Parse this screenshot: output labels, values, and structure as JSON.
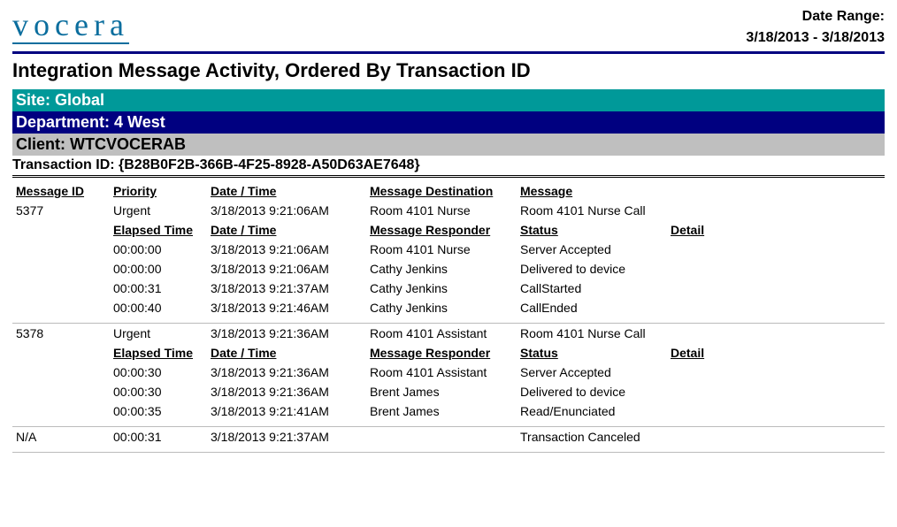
{
  "header": {
    "logo_text": "vocera",
    "date_range_label": "Date Range:",
    "date_range_value": "3/18/2013 - 3/18/2013"
  },
  "report": {
    "title": "Integration Message Activity, Ordered By Transaction ID",
    "site_label": "Site: Global",
    "department_label": "Department: 4 West",
    "client_label": "Client: WTCVOCERAB",
    "transaction_label": "Transaction ID: {B28B0F2B-366B-4F25-8928-A50D63AE7648}"
  },
  "columns_top": {
    "message_id": "Message ID",
    "priority": "Priority",
    "datetime": "Date / Time",
    "destination": "Message Destination",
    "message": "Message"
  },
  "columns_sub": {
    "elapsed": "Elapsed Time",
    "datetime": "Date / Time",
    "responder": "Message Responder",
    "status": "Status",
    "detail": "Detail"
  },
  "msg1": {
    "id": "5377",
    "priority": "Urgent",
    "datetime": "3/18/2013  9:21:06AM",
    "destination": "Room 4101 Nurse",
    "message": "Room 4101 Nurse Call",
    "rows": [
      {
        "elapsed": "00:00:00",
        "datetime": "3/18/2013  9:21:06AM",
        "responder": "Room 4101 Nurse",
        "status": "Server Accepted"
      },
      {
        "elapsed": "00:00:00",
        "datetime": "3/18/2013  9:21:06AM",
        "responder": "Cathy Jenkins",
        "status": "Delivered to device"
      },
      {
        "elapsed": "00:00:31",
        "datetime": "3/18/2013  9:21:37AM",
        "responder": "Cathy Jenkins",
        "status": "CallStarted"
      },
      {
        "elapsed": "00:00:40",
        "datetime": "3/18/2013  9:21:46AM",
        "responder": "Cathy Jenkins",
        "status": "CallEnded"
      }
    ]
  },
  "msg2": {
    "id": "5378",
    "priority": "Urgent",
    "datetime": "3/18/2013  9:21:36AM",
    "destination": "Room 4101 Assistant",
    "message": "Room 4101 Nurse Call",
    "rows": [
      {
        "elapsed": "00:00:30",
        "datetime": "3/18/2013  9:21:36AM",
        "responder": "Room 4101 Assistant",
        "status": "Server Accepted"
      },
      {
        "elapsed": "00:00:30",
        "datetime": "3/18/2013  9:21:36AM",
        "responder": "Brent James",
        "status": "Delivered to device"
      },
      {
        "elapsed": "00:00:35",
        "datetime": "3/18/2013  9:21:41AM",
        "responder": "Brent James",
        "status": "Read/Enunciated"
      }
    ]
  },
  "cancel": {
    "id": "N/A",
    "elapsed": "00:00:31",
    "datetime": "3/18/2013  9:21:37AM",
    "status": "Transaction Canceled"
  },
  "colors": {
    "teal": "#009999",
    "navy": "#000080",
    "gray": "#bfbfbf",
    "logo": "#0b6e9e"
  }
}
